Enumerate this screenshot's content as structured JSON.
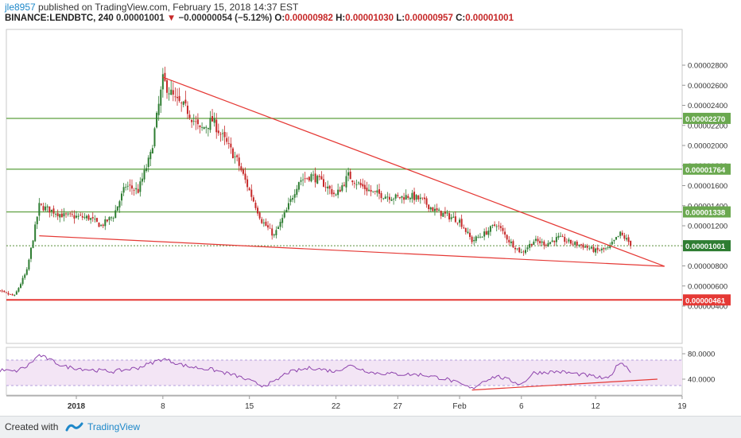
{
  "header": {
    "author": "jle8957",
    "published_text": "published on TradingView.com, February 15, 2018 14:37 EST",
    "symbol_line": "BINANCE:LENDBTC, 240",
    "last": "0.00001001",
    "change": "−0.00000054 (−5.12%)",
    "o_label": "O:",
    "o_value": "0.00000982",
    "h_label": "H:",
    "h_value": "0.00001030",
    "l_label": "L:",
    "l_value": "0.00000957",
    "c_label": "C:",
    "c_value": "0.00001001"
  },
  "footer": {
    "created_with": "Created with",
    "brand": "TradingView"
  },
  "colors": {
    "up": "#2e7d32",
    "down": "#c62828",
    "support": "#6aa84f",
    "red_line": "#e53935",
    "rsi_line": "#8e44ad",
    "rsi_band": "#f3e5f5"
  },
  "chart_data": [
    {
      "type": "candlestick",
      "title": "BINANCE:LENDBTC, 240",
      "ylim": [
        3.6e-06,
        3e-06
      ],
      "y_ticks": [
        "0.00002800",
        "0.00002600",
        "0.00002400",
        "0.00002200",
        "0.00002000",
        "0.00001800",
        "0.00001600",
        "0.00001400",
        "0.00001200",
        "0.00001000",
        "0.00000800",
        "0.00000600",
        "0.00000400"
      ],
      "y_tick_values": [
        2.8e-05,
        2.6e-05,
        2.4e-05,
        2.2e-05,
        2e-05,
        1.8e-05,
        1.6e-05,
        1.4e-05,
        1.2e-05,
        1e-05,
        8e-06,
        6e-06,
        4e-06
      ],
      "x_ticks": [
        "2018",
        "8",
        "15",
        "22",
        "27",
        "Feb",
        "6",
        "12",
        "19"
      ],
      "horizontal_levels": [
        {
          "label": "0.00002270",
          "value": 2.27e-05,
          "style": "support"
        },
        {
          "label": "0.00001764",
          "value": 1.764e-05,
          "style": "support"
        },
        {
          "label": "0.00001338",
          "value": 1.338e-05,
          "style": "support"
        },
        {
          "label": "0.00001001",
          "value": 1.001e-05,
          "style": "current"
        },
        {
          "label": "0.00000461",
          "value": 4.61e-06,
          "style": "resistance"
        }
      ],
      "trendlines": [
        {
          "name": "upper",
          "from_date": "2018-01-08",
          "from_value": 2.68e-05,
          "to_date": "2018-02-15",
          "to_value": 8.2e-06
        },
        {
          "name": "lower",
          "from_date": "2017-12-29",
          "from_value": 1.1e-05,
          "to_date": "2018-02-15",
          "to_value": 8.2e-06
        }
      ],
      "price_path": [
        [
          "2017-12-25",
          5.7e-06
        ],
        [
          "2017-12-27",
          5e-06
        ],
        [
          "2017-12-28",
          7.5e-06
        ],
        [
          "2017-12-29",
          1.4e-05
        ],
        [
          "2017-12-31",
          1.3e-05
        ],
        [
          "2018-01-02",
          1.28e-05
        ],
        [
          "2018-01-03",
          1.2e-05
        ],
        [
          "2018-01-04",
          1.3e-05
        ],
        [
          "2018-01-05",
          1.6e-05
        ],
        [
          "2018-01-06",
          1.55e-05
        ],
        [
          "2018-01-07",
          1.9e-05
        ],
        [
          "2018-01-08",
          2.65e-05
        ],
        [
          "2018-01-09",
          2.45e-05
        ],
        [
          "2018-01-10",
          2.35e-05
        ],
        [
          "2018-01-11",
          2.15e-05
        ],
        [
          "2018-01-12",
          2.25e-05
        ],
        [
          "2018-01-13",
          2.05e-05
        ],
        [
          "2018-01-14",
          1.85e-05
        ],
        [
          "2018-01-15",
          1.55e-05
        ],
        [
          "2018-01-16",
          1.25e-05
        ],
        [
          "2018-01-17",
          1.1e-05
        ],
        [
          "2018-01-18",
          1.35e-05
        ],
        [
          "2018-01-19",
          1.65e-05
        ],
        [
          "2018-01-20",
          1.7e-05
        ],
        [
          "2018-01-21",
          1.62e-05
        ],
        [
          "2018-01-22",
          1.5e-05
        ],
        [
          "2018-01-23",
          1.7e-05
        ],
        [
          "2018-01-24",
          1.6e-05
        ],
        [
          "2018-01-25",
          1.53e-05
        ],
        [
          "2018-01-26",
          1.5e-05
        ],
        [
          "2018-01-27",
          1.48e-05
        ],
        [
          "2018-01-28",
          1.5e-05
        ],
        [
          "2018-01-29",
          1.45e-05
        ],
        [
          "2018-01-30",
          1.35e-05
        ],
        [
          "2018-01-31",
          1.3e-05
        ],
        [
          "2018-02-01",
          1.25e-05
        ],
        [
          "2018-02-02",
          1.05e-05
        ],
        [
          "2018-02-03",
          1.12e-05
        ],
        [
          "2018-02-04",
          1.22e-05
        ],
        [
          "2018-02-05",
          1.05e-05
        ],
        [
          "2018-02-06",
          9.3e-06
        ],
        [
          "2018-02-07",
          1.05e-05
        ],
        [
          "2018-02-08",
          1.02e-05
        ],
        [
          "2018-02-09",
          1.08e-05
        ],
        [
          "2018-02-10",
          1.03e-05
        ],
        [
          "2018-02-11",
          1e-05
        ],
        [
          "2018-02-12",
          9.5e-06
        ],
        [
          "2018-02-13",
          9.7e-06
        ],
        [
          "2018-02-14",
          1.12e-05
        ],
        [
          "2018-02-15",
          1e-05
        ]
      ]
    },
    {
      "type": "line",
      "title": "RSI",
      "ylim": [
        15,
        90
      ],
      "y_ticks": [
        "80.0000",
        "40.0000"
      ],
      "y_tick_values": [
        80,
        40
      ],
      "band": [
        30,
        70
      ],
      "trendline": {
        "from_date": "2018-02-02",
        "from_value": 23,
        "to_date": "2018-02-17",
        "to_value": 40
      },
      "values": [
        [
          "2017-12-25",
          56
        ],
        [
          "2017-12-27",
          52
        ],
        [
          "2017-12-28",
          60
        ],
        [
          "2017-12-29",
          78
        ],
        [
          "2017-12-31",
          60
        ],
        [
          "2018-01-02",
          55
        ],
        [
          "2018-01-04",
          52
        ],
        [
          "2018-01-06",
          58
        ],
        [
          "2018-01-08",
          72
        ],
        [
          "2018-01-10",
          60
        ],
        [
          "2018-01-12",
          55
        ],
        [
          "2018-01-14",
          45
        ],
        [
          "2018-01-16",
          30
        ],
        [
          "2018-01-17",
          35
        ],
        [
          "2018-01-18",
          50
        ],
        [
          "2018-01-20",
          58
        ],
        [
          "2018-01-22",
          52
        ],
        [
          "2018-01-23",
          62
        ],
        [
          "2018-01-25",
          50
        ],
        [
          "2018-01-27",
          48
        ],
        [
          "2018-01-29",
          47
        ],
        [
          "2018-01-31",
          40
        ],
        [
          "2018-02-02",
          25
        ],
        [
          "2018-02-03",
          38
        ],
        [
          "2018-02-04",
          45
        ],
        [
          "2018-02-06",
          32
        ],
        [
          "2018-02-07",
          50
        ],
        [
          "2018-02-09",
          52
        ],
        [
          "2018-02-11",
          47
        ],
        [
          "2018-02-13",
          40
        ],
        [
          "2018-02-14",
          68
        ],
        [
          "2018-02-15",
          50
        ]
      ]
    }
  ]
}
